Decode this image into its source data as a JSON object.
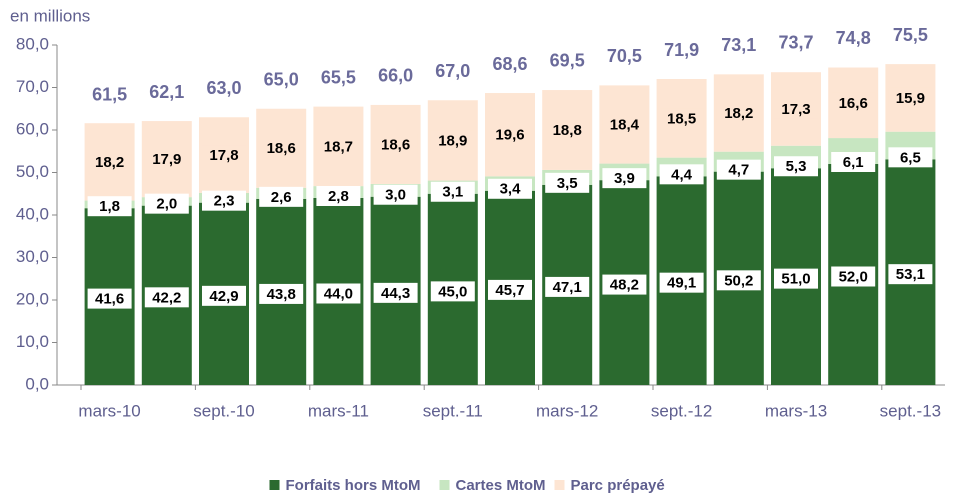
{
  "chart_data": {
    "type": "stacked_bar",
    "y_axis_label": "en millions",
    "categories": [
      "mars-10",
      null,
      "sept.-10",
      null,
      "mars-11",
      null,
      "sept.-11",
      null,
      "mars-12",
      null,
      "sept.-12",
      null,
      "mars-13",
      null,
      "sept.-13"
    ],
    "series": [
      {
        "name": "Forfaits hors MtoM",
        "color": "#2b6a2f",
        "values": [
          41.6,
          42.2,
          42.9,
          43.8,
          44.0,
          44.3,
          45.0,
          45.7,
          47.1,
          48.2,
          49.1,
          50.2,
          51.0,
          52.0,
          53.1
        ],
        "value_labels": [
          "41,6",
          "42,2",
          "42,9",
          "43,8",
          "44,0",
          "44,3",
          "45,0",
          "45,7",
          "47,1",
          "48,2",
          "49,1",
          "50,2",
          "51,0",
          "52,0",
          "53,1"
        ]
      },
      {
        "name": "Cartes MtoM",
        "color": "#c7e6c1",
        "values": [
          1.8,
          2.0,
          2.3,
          2.6,
          2.8,
          3.0,
          3.1,
          3.4,
          3.5,
          3.9,
          4.4,
          4.7,
          5.3,
          6.1,
          6.5
        ],
        "value_labels": [
          "1,8",
          "2,0",
          "2,3",
          "2,6",
          "2,8",
          "3,0",
          "3,1",
          "3,4",
          "3,5",
          "3,9",
          "4,4",
          "4,7",
          "5,3",
          "6,1",
          "6,5"
        ]
      },
      {
        "name": "Parc prépayé",
        "color": "#fde5d3",
        "values": [
          18.2,
          17.9,
          17.8,
          18.6,
          18.7,
          18.6,
          18.9,
          19.6,
          18.8,
          18.4,
          18.5,
          18.2,
          17.3,
          16.6,
          15.9
        ],
        "value_labels": [
          "18,2",
          "17,9",
          "17,8",
          "18,6",
          "18,7",
          "18,6",
          "18,9",
          "19,6",
          "18,8",
          "18,4",
          "18,5",
          "18,2",
          "17,3",
          "16,6",
          "15,9"
        ]
      }
    ],
    "totals": [
      61.5,
      62.1,
      63.0,
      65.0,
      65.5,
      66.0,
      67.0,
      68.6,
      69.5,
      70.5,
      71.9,
      73.1,
      73.7,
      74.8,
      75.5
    ],
    "total_labels": [
      "61,5",
      "62,1",
      "63,0",
      "65,0",
      "65,5",
      "66,0",
      "67,0",
      "68,6",
      "69,5",
      "70,5",
      "71,9",
      "73,1",
      "73,7",
      "74,8",
      "75,5"
    ],
    "ylim": [
      0,
      80
    ],
    "yticks": [
      {
        "value": 0,
        "label": "0,0"
      },
      {
        "value": 10,
        "label": "10,0"
      },
      {
        "value": 20,
        "label": "20,0"
      },
      {
        "value": 30,
        "label": "30,0"
      },
      {
        "value": 40,
        "label": "40,0"
      },
      {
        "value": 50,
        "label": "50,0"
      },
      {
        "value": 60,
        "label": "60,0"
      },
      {
        "value": 70,
        "label": "70,0"
      },
      {
        "value": 80,
        "label": "80,0"
      }
    ],
    "legend": "bottom"
  }
}
